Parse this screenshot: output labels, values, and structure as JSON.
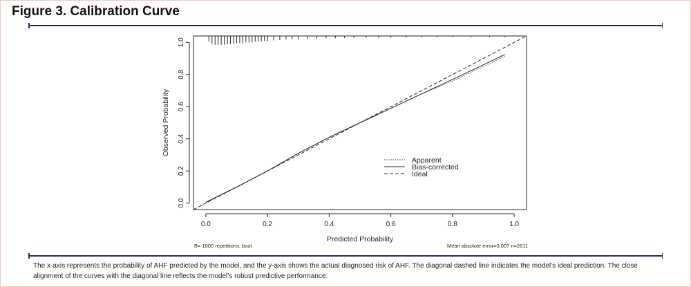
{
  "figure": {
    "title": "Figure 3. Calibration Curve",
    "caption": "The x-axis represents the probability of AHF predicted by the model, and the y-axis shows the actual diagnosed risk of AHF. The diagonal dashed line indicates the model’s ideal prediction. The close alignment of the curves with the diagonal line reflects the model’s robust predictive performance.",
    "footnote_left": "B= 1000 repetitions, boot",
    "footnote_right": "Mean absolute error=0.007 n=2611"
  },
  "colors": {
    "rule": "#1f2f5a",
    "frame": "#f2c9b8",
    "ink": "#222222"
  },
  "chart_data": {
    "type": "line",
    "title": "",
    "xlabel": "Predicted Probability",
    "ylabel": "Observed Probability",
    "xlim": [
      -0.04,
      1.04
    ],
    "ylim": [
      -0.04,
      1.04
    ],
    "xticks": [
      0,
      0.2,
      0.4,
      0.6,
      0.8,
      1
    ],
    "xtick_labels": [
      "0.0",
      "0.2",
      "0.4",
      "0.6",
      "0.8",
      "1.0"
    ],
    "yticks": [
      0,
      0.2,
      0.4,
      0.6,
      0.8,
      1
    ],
    "ytick_labels": [
      "0.0",
      "0.2",
      "0.4",
      "0.6",
      "0.8",
      "1.0"
    ],
    "grid": false,
    "legend_position": "bottom-center",
    "series": [
      {
        "name": "Apparent",
        "style": "dotted",
        "x": [
          0.0,
          0.1,
          0.2,
          0.3,
          0.4,
          0.5,
          0.6,
          0.7,
          0.8,
          0.9,
          0.97
        ],
        "y": [
          0.005,
          0.1,
          0.2,
          0.31,
          0.41,
          0.5,
          0.59,
          0.68,
          0.76,
          0.85,
          0.915
        ]
      },
      {
        "name": "Bias-corrected",
        "style": "solid",
        "x": [
          0.0,
          0.1,
          0.2,
          0.3,
          0.4,
          0.5,
          0.6,
          0.7,
          0.8,
          0.9,
          0.97
        ],
        "y": [
          0.005,
          0.1,
          0.2,
          0.31,
          0.41,
          0.5,
          0.59,
          0.68,
          0.77,
          0.86,
          0.925
        ]
      },
      {
        "name": "Ideal",
        "style": "dashed",
        "x": [
          -0.04,
          1.04
        ],
        "y": [
          -0.04,
          1.04
        ]
      }
    ],
    "rug": {
      "baseline": 1.04,
      "x": [
        0.01,
        0.02,
        0.03,
        0.04,
        0.05,
        0.06,
        0.07,
        0.08,
        0.09,
        0.1,
        0.11,
        0.12,
        0.13,
        0.14,
        0.15,
        0.16,
        0.17,
        0.18,
        0.19,
        0.2,
        0.22,
        0.24,
        0.26,
        0.28,
        0.3,
        0.33,
        0.36,
        0.39,
        0.42,
        0.45,
        0.48,
        0.52,
        0.56,
        0.6,
        0.65,
        0.7,
        0.75,
        0.8,
        0.86,
        0.92,
        0.97
      ],
      "heights": [
        0.035,
        0.05,
        0.055,
        0.055,
        0.055,
        0.055,
        0.05,
        0.05,
        0.05,
        0.045,
        0.045,
        0.045,
        0.04,
        0.04,
        0.04,
        0.035,
        0.035,
        0.035,
        0.03,
        0.03,
        0.028,
        0.025,
        0.022,
        0.02,
        0.02,
        0.018,
        0.016,
        0.015,
        0.014,
        0.013,
        0.012,
        0.011,
        0.011,
        0.01,
        0.01,
        0.009,
        0.009,
        0.008,
        0.008,
        0.008,
        0.008
      ]
    }
  }
}
